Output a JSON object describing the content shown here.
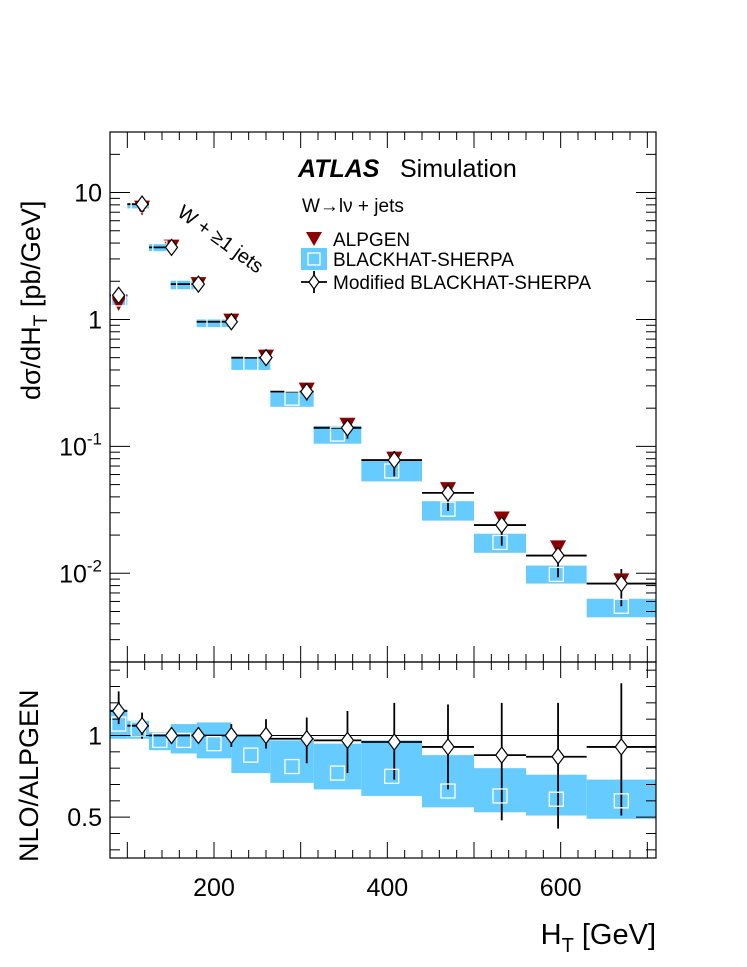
{
  "figure": {
    "experiment": "ATLAS",
    "label": "Simulation",
    "process": "W→lν + jets",
    "selection": "W + ≥1 jets"
  },
  "colors": {
    "alpgen": "#8b0000",
    "blackhat_band": "#66ccff",
    "modified": "#000000",
    "axis": "#000000"
  },
  "chart_data": [
    {
      "type": "scatter",
      "panel": "main",
      "xlabel": "",
      "ylabel": "dσ/dH_T [pb/GeV]",
      "xlim": [
        80,
        710
      ],
      "ylim": [
        0.002,
        30
      ],
      "log_y": true,
      "y_ticks": [
        {
          "value": 10,
          "base": "10",
          "exp": ""
        },
        {
          "value": 1,
          "base": "1",
          "exp": ""
        },
        {
          "value": 0.1,
          "base": "10",
          "exp": "-1"
        },
        {
          "value": 0.01,
          "base": "10",
          "exp": "-2"
        }
      ],
      "bins": [
        [
          80,
          100
        ],
        [
          100,
          125
        ],
        [
          125,
          150
        ],
        [
          150,
          180
        ],
        [
          180,
          220
        ],
        [
          220,
          265
        ],
        [
          265,
          315
        ],
        [
          315,
          370
        ],
        [
          370,
          440
        ],
        [
          440,
          500
        ],
        [
          500,
          560
        ],
        [
          560,
          630
        ],
        [
          630,
          710
        ]
      ],
      "legend": [
        "ALPGEN",
        "BLACKHAT-SHERPA",
        "Modified BLACKHAT-SHERPA"
      ],
      "legend_position": "top-right",
      "series": [
        {
          "name": "ALPGEN",
          "marker": "triangle-down",
          "x": [
            90,
            117,
            151,
            182,
            220,
            260,
            307,
            354,
            408,
            470,
            532,
            597,
            670
          ],
          "values": [
            1.35,
            7.6,
            3.75,
            1.9,
            0.98,
            0.51,
            0.28,
            0.148,
            0.08,
            0.046,
            0.027,
            0.016,
            0.0088
          ]
        },
        {
          "name": "BLACKHAT-SHERPA",
          "marker": "open-square",
          "values": [
            1.45,
            7.9,
            3.65,
            1.85,
            0.96,
            0.45,
            0.24,
            0.125,
            0.064,
            0.032,
            0.0175,
            0.0098,
            0.0055
          ],
          "band_low": [
            1.3,
            7.5,
            3.45,
            1.73,
            0.87,
            0.4,
            0.205,
            0.105,
            0.053,
            0.026,
            0.0145,
            0.0083,
            0.0045
          ],
          "band_high": [
            1.57,
            8.25,
            3.92,
            2.02,
            1.0,
            0.5,
            0.265,
            0.145,
            0.077,
            0.037,
            0.0205,
            0.0115,
            0.0063
          ]
        },
        {
          "name": "Modified BLACKHAT-SHERPA",
          "marker": "open-diamond",
          "x": [
            90,
            117,
            151,
            182,
            220,
            260,
            307,
            354,
            408,
            470,
            532,
            597,
            670
          ],
          "values": [
            1.55,
            8.1,
            3.7,
            1.9,
            0.96,
            0.5,
            0.27,
            0.14,
            0.078,
            0.043,
            0.024,
            0.0138,
            0.0083
          ],
          "err_low": [
            1.3,
            7.3,
            3.45,
            1.78,
            0.9,
            0.46,
            0.23,
            0.115,
            0.058,
            0.031,
            0.0165,
            0.0093,
            0.0055
          ],
          "err_high": [
            1.7,
            8.8,
            3.92,
            2.0,
            1.02,
            0.54,
            0.305,
            0.16,
            0.092,
            0.052,
            0.03,
            0.0175,
            0.0108
          ]
        }
      ]
    },
    {
      "type": "scatter",
      "panel": "ratio",
      "xlabel": "H_T [GeV]",
      "ylabel": "NLO/ALPGEN",
      "xlim": [
        80,
        710
      ],
      "ylim": [
        0.25,
        1.45
      ],
      "x_ticks": [
        200,
        400,
        600
      ],
      "y_ticks": [
        {
          "value": 1,
          "label": "1"
        },
        {
          "value": 0.5,
          "label": "0.5"
        }
      ],
      "reference_line": 1,
      "bins": [
        [
          80,
          100
        ],
        [
          100,
          125
        ],
        [
          125,
          150
        ],
        [
          150,
          180
        ],
        [
          180,
          220
        ],
        [
          220,
          265
        ],
        [
          265,
          315
        ],
        [
          315,
          370
        ],
        [
          370,
          440
        ],
        [
          440,
          500
        ],
        [
          500,
          560
        ],
        [
          560,
          630
        ],
        [
          630,
          710
        ]
      ],
      "series": [
        {
          "name": "BLACKHAT-SHERPA",
          "marker": "open-square",
          "values": [
            1.07,
            1.04,
            0.97,
            0.97,
            0.95,
            0.88,
            0.81,
            0.77,
            0.75,
            0.66,
            0.63,
            0.61,
            0.6
          ],
          "band_low": [
            0.98,
            0.98,
            0.91,
            0.89,
            0.86,
            0.77,
            0.71,
            0.67,
            0.63,
            0.56,
            0.53,
            0.51,
            0.49
          ],
          "band_high": [
            1.16,
            1.09,
            1.02,
            1.07,
            1.08,
            1.0,
            0.97,
            0.95,
            0.97,
            0.88,
            0.8,
            0.76,
            0.73
          ]
        },
        {
          "name": "Modified BLACKHAT-SHERPA",
          "marker": "open-diamond",
          "x": [
            90,
            117,
            151,
            182,
            220,
            260,
            307,
            354,
            408,
            470,
            532,
            597,
            670
          ],
          "values": [
            1.15,
            1.06,
            1.0,
            1.0,
            1.0,
            1.0,
            0.98,
            0.97,
            0.96,
            0.93,
            0.88,
            0.87,
            0.93
          ],
          "err_low": [
            1.07,
            0.98,
            0.95,
            0.96,
            0.93,
            0.92,
            0.83,
            0.77,
            0.73,
            0.67,
            0.48,
            0.43,
            0.51
          ],
          "err_high": [
            1.27,
            1.14,
            1.05,
            1.05,
            1.07,
            1.1,
            1.11,
            1.15,
            1.2,
            1.19,
            1.2,
            1.2,
            1.32
          ]
        }
      ]
    }
  ]
}
